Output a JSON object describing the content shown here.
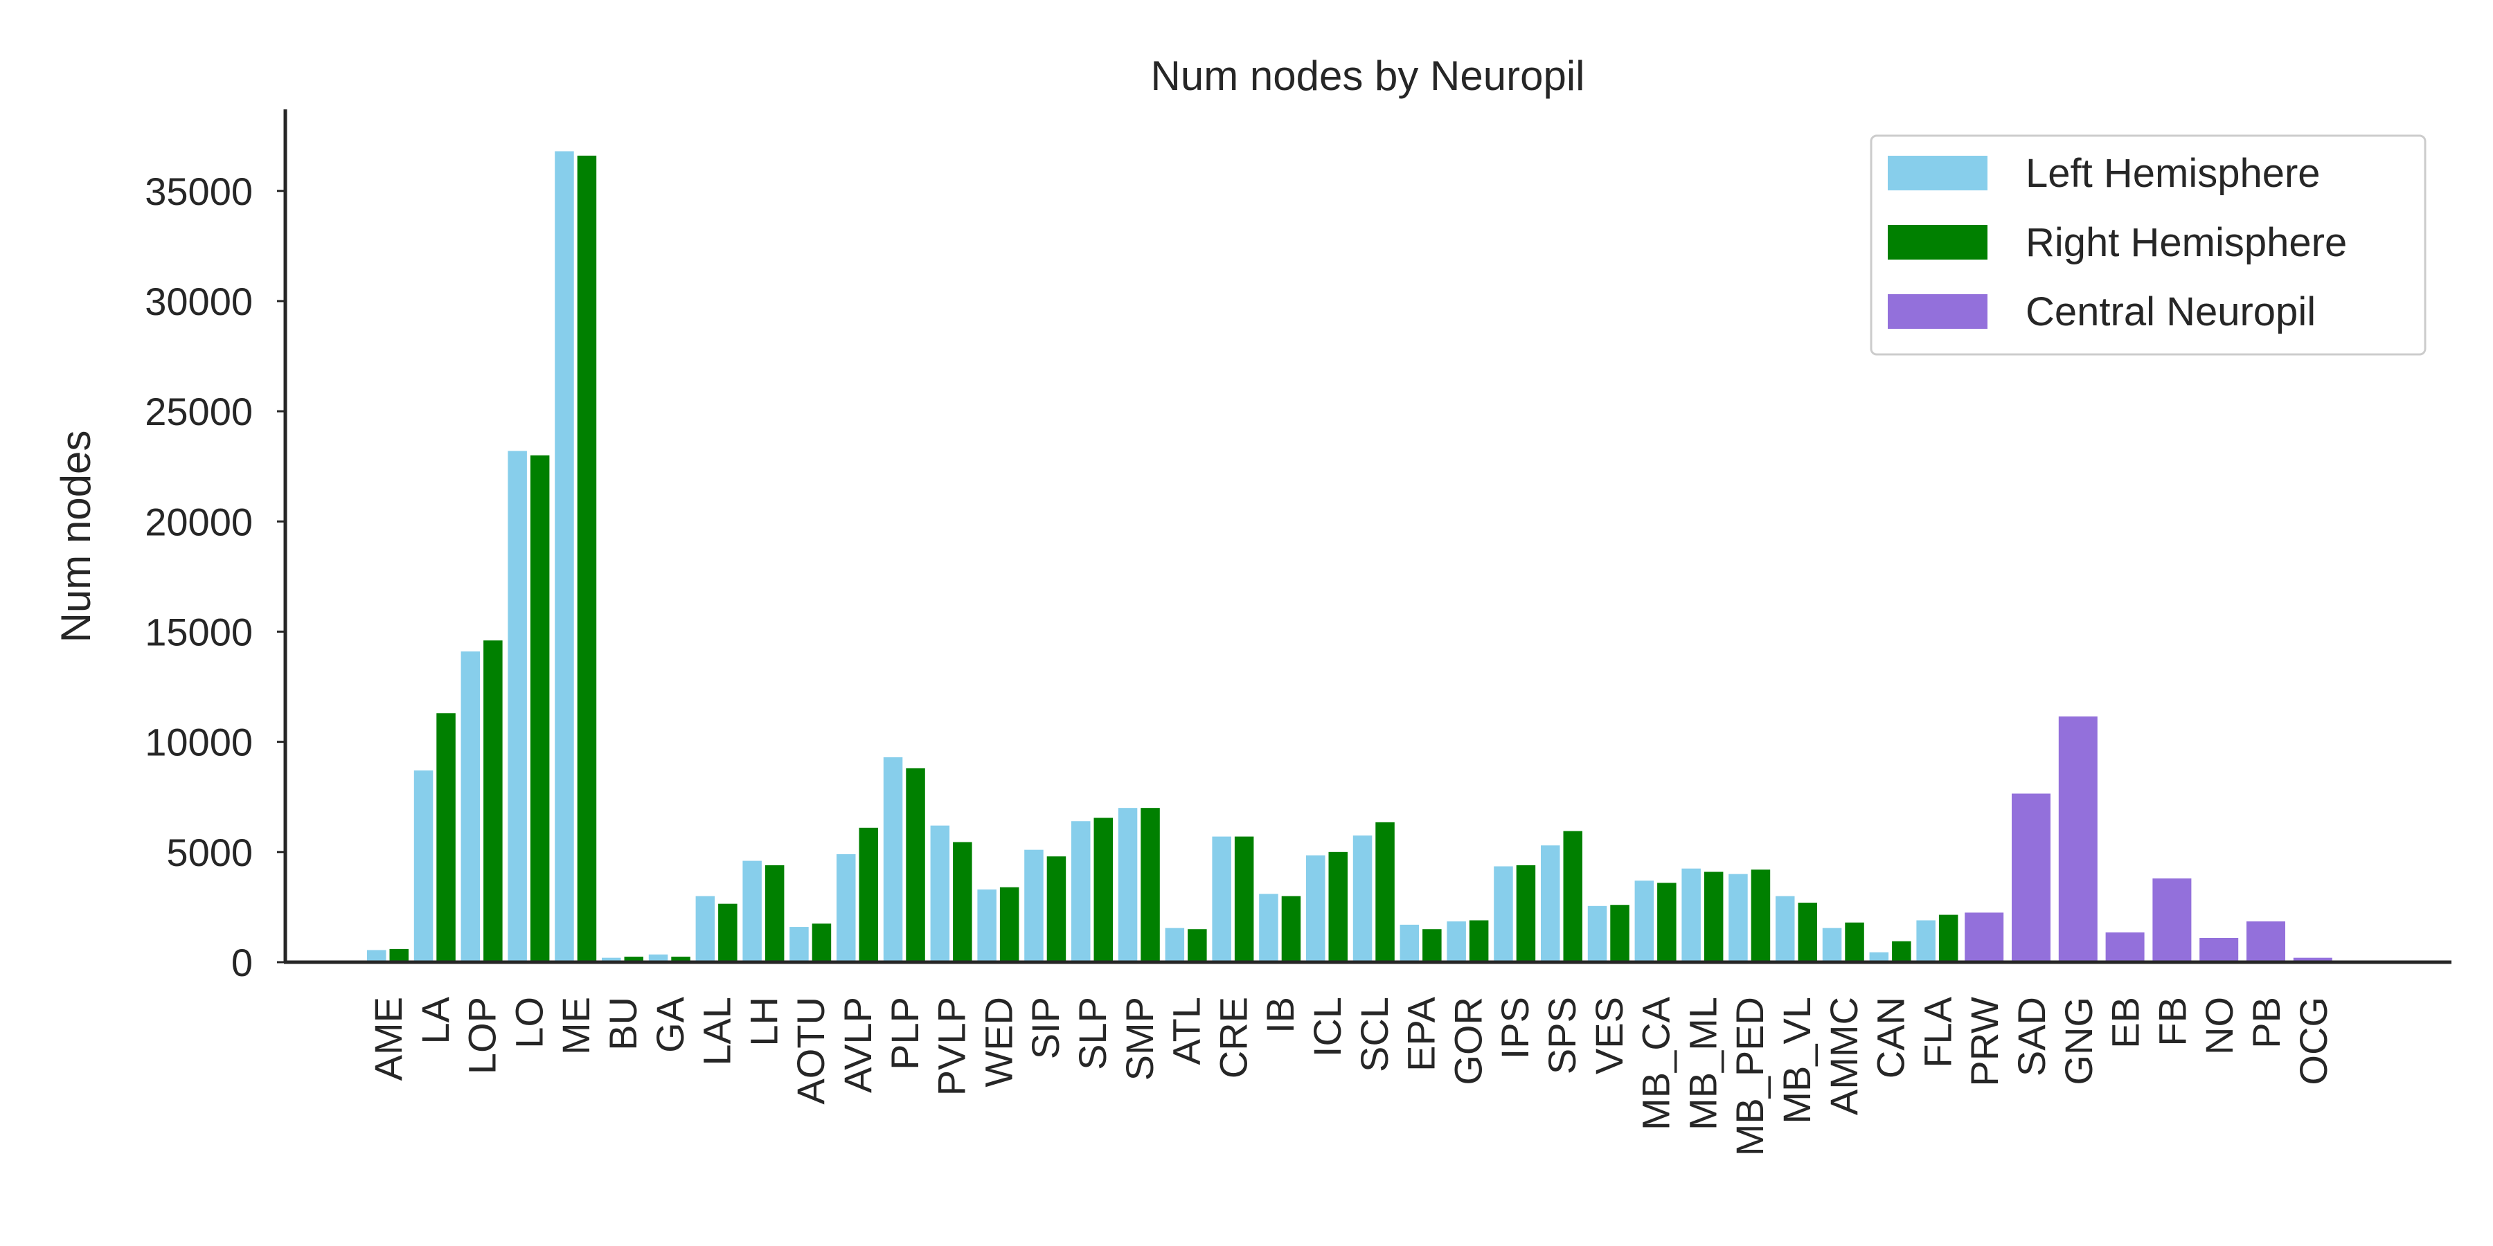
{
  "chart_data": {
    "type": "bar",
    "title": "Num nodes by Neuropil",
    "xlabel": "",
    "ylabel": "Num nodes",
    "ylim": [
      0,
      38700
    ],
    "yticks": [
      0,
      5000,
      10000,
      15000,
      20000,
      25000,
      30000,
      35000
    ],
    "ytick_labels": [
      "0",
      "5000",
      "10000",
      "15000",
      "20000",
      "25000",
      "30000",
      "35000"
    ],
    "grid": false,
    "legend_position": "top-right",
    "categories": [
      "AME",
      "LA",
      "LOP",
      "LO",
      "ME",
      "BU",
      "GA",
      "LAL",
      "LH",
      "AOTU",
      "AVLP",
      "PLP",
      "PVLP",
      "WED",
      "SIP",
      "SLP",
      "SMP",
      "ATL",
      "CRE",
      "IB",
      "ICL",
      "SCL",
      "EPA",
      "GOR",
      "IPS",
      "SPS",
      "VES",
      "MB_CA",
      "MB_ML",
      "MB_PED",
      "MB_VL",
      "AMMC",
      "CAN",
      "FLA",
      "PRW",
      "SAD",
      "GNG",
      "EB",
      "FB",
      "NO",
      "PB",
      "OCG"
    ],
    "series": [
      {
        "name": "Left Hemisphere",
        "color": "#87ceeb",
        "values": [
          550,
          8700,
          14100,
          23200,
          36800,
          200,
          350,
          3000,
          4600,
          1600,
          4900,
          9300,
          6200,
          3300,
          5100,
          6400,
          7000,
          1550,
          5700,
          3100,
          4850,
          5750,
          1700,
          1850,
          4350,
          5300,
          2550,
          3700,
          4250,
          4000,
          3000,
          1550,
          450,
          1900,
          null,
          null,
          null,
          null,
          null,
          null,
          null,
          null
        ]
      },
      {
        "name": "Right Hemisphere",
        "color": "#008000",
        "values": [
          600,
          11300,
          14600,
          23000,
          36600,
          250,
          250,
          2650,
          4400,
          1750,
          6100,
          8800,
          5450,
          3400,
          4800,
          6550,
          7000,
          1500,
          5700,
          3000,
          5000,
          6350,
          1500,
          1900,
          4400,
          5950,
          2600,
          3600,
          4100,
          4200,
          2700,
          1800,
          950,
          2150,
          null,
          null,
          null,
          null,
          null,
          null,
          null,
          null
        ]
      },
      {
        "name": "Central Neuropil",
        "color": "#9370db",
        "values": [
          null,
          null,
          null,
          null,
          null,
          null,
          null,
          null,
          null,
          null,
          null,
          null,
          null,
          null,
          null,
          null,
          null,
          null,
          null,
          null,
          null,
          null,
          null,
          null,
          null,
          null,
          null,
          null,
          null,
          null,
          null,
          null,
          null,
          null,
          2250,
          7650,
          11150,
          1350,
          3800,
          1100,
          1850,
          200
        ]
      }
    ]
  }
}
